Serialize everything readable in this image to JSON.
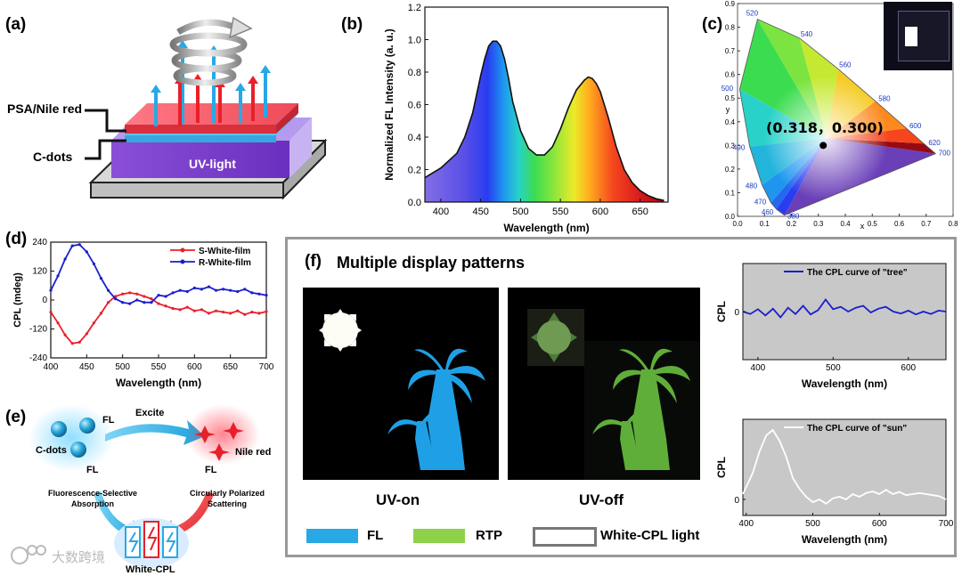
{
  "panels": {
    "a": {
      "label": "(a)",
      "layer_top": "PSA/Nile red",
      "layer_bottom": "C-dots",
      "device_text": "UV-light"
    },
    "b": {
      "label": "(b)"
    },
    "c": {
      "label": "(c)",
      "point_label": "(0.318，0.300)"
    },
    "d": {
      "label": "(d)"
    },
    "e": {
      "label": "(e)",
      "cdots": "C-dots",
      "fl1": "FL",
      "excite": "Excite",
      "nile": "Nile red",
      "fl2": "FL",
      "fl3": "FL",
      "left_caption_1": "Fluorescence-Selective",
      "left_caption_2": "Absorption",
      "right_caption_1": "Circularly Polarized",
      "right_caption_2": "Scattering",
      "bottom": "White-CPL",
      "watermark": "大数跨境"
    },
    "f": {
      "label": "(f)",
      "title": "Multiple display patterns",
      "uv_on": "UV-on",
      "uv_off": "UV-off",
      "legend_fl": "FL",
      "legend_rtp": "RTP",
      "legend_white": "White-CPL light"
    }
  },
  "colors": {
    "fl": "#29a8e6",
    "rtp": "#8fd24a",
    "s_film": "#e8202a",
    "r_film": "#1a1fcc"
  },
  "chart_data": [
    {
      "id": "b",
      "type": "area",
      "xlabel": "Wavelength (nm)",
      "ylabel": "Normalized FL Intensity (a. u.)",
      "xlim": [
        380,
        685
      ],
      "ylim": [
        0,
        1.2
      ],
      "xticks": [
        400,
        450,
        500,
        550,
        600,
        650
      ],
      "yticks": [
        0.0,
        0.2,
        0.4,
        0.6,
        0.8,
        1.0,
        1.2
      ],
      "x": [
        380,
        400,
        420,
        430,
        440,
        450,
        455,
        460,
        465,
        470,
        475,
        480,
        485,
        490,
        500,
        510,
        520,
        530,
        540,
        550,
        560,
        570,
        580,
        585,
        590,
        595,
        600,
        610,
        620,
        630,
        640,
        650,
        660,
        670,
        680
      ],
      "y": [
        0.15,
        0.21,
        0.3,
        0.4,
        0.55,
        0.78,
        0.88,
        0.96,
        0.99,
        0.99,
        0.96,
        0.88,
        0.76,
        0.62,
        0.44,
        0.33,
        0.29,
        0.29,
        0.34,
        0.45,
        0.58,
        0.69,
        0.75,
        0.77,
        0.76,
        0.73,
        0.68,
        0.52,
        0.34,
        0.2,
        0.12,
        0.07,
        0.04,
        0.02,
        0.01
      ]
    },
    {
      "id": "c",
      "type": "scatter",
      "xlabel": "x",
      "ylabel": "y",
      "xlim": [
        0,
        0.8
      ],
      "ylim": [
        0,
        0.9
      ],
      "xticks": [
        0.0,
        0.1,
        0.2,
        0.3,
        0.4,
        0.5,
        0.6,
        0.7,
        0.8
      ],
      "yticks": [
        0.0,
        0.1,
        0.2,
        0.3,
        0.4,
        0.5,
        0.6,
        0.7,
        0.8,
        0.9
      ],
      "locus_labels": [
        {
          "nm": "380",
          "x": 0.174,
          "y": 0.005
        },
        {
          "nm": "460",
          "x": 0.144,
          "y": 0.03
        },
        {
          "nm": "470",
          "x": 0.124,
          "y": 0.058
        },
        {
          "nm": "480",
          "x": 0.091,
          "y": 0.133
        },
        {
          "nm": "490",
          "x": 0.045,
          "y": 0.295
        },
        {
          "nm": "500",
          "x": 0.008,
          "y": 0.538
        },
        {
          "nm": "520",
          "x": 0.074,
          "y": 0.834
        },
        {
          "nm": "540",
          "x": 0.23,
          "y": 0.754
        },
        {
          "nm": "560",
          "x": 0.373,
          "y": 0.624
        },
        {
          "nm": "580",
          "x": 0.512,
          "y": 0.487
        },
        {
          "nm": "600",
          "x": 0.627,
          "y": 0.372
        },
        {
          "nm": "620",
          "x": 0.691,
          "y": 0.308
        },
        {
          "nm": "700",
          "x": 0.735,
          "y": 0.265
        }
      ],
      "point": {
        "x": 0.318,
        "y": 0.3
      }
    },
    {
      "id": "d",
      "type": "line",
      "xlabel": "Wavelength (nm)",
      "ylabel": "CPL (mdeg)",
      "xlim": [
        400,
        700
      ],
      "ylim": [
        -240,
        240
      ],
      "xticks": [
        400,
        450,
        500,
        550,
        600,
        650,
        700
      ],
      "yticks": [
        -240,
        -120,
        0,
        120,
        240
      ],
      "legend": "top-right",
      "x": [
        400,
        410,
        420,
        430,
        440,
        450,
        460,
        470,
        480,
        490,
        500,
        510,
        520,
        530,
        540,
        550,
        560,
        570,
        580,
        590,
        600,
        610,
        620,
        630,
        640,
        650,
        660,
        670,
        680,
        690,
        700
      ],
      "series": [
        {
          "name": "S-White-film",
          "color": "#e8202a",
          "values": [
            -50,
            -95,
            -145,
            -180,
            -175,
            -140,
            -95,
            -55,
            -10,
            15,
            25,
            30,
            25,
            15,
            5,
            -15,
            -25,
            -35,
            -40,
            -30,
            -45,
            -40,
            -55,
            -45,
            -50,
            -55,
            -45,
            -60,
            -50,
            -55,
            -48
          ]
        },
        {
          "name": "R-White-film",
          "color": "#1a1fcc",
          "values": [
            40,
            100,
            170,
            225,
            230,
            200,
            150,
            90,
            40,
            5,
            -10,
            -15,
            0,
            -10,
            -10,
            20,
            15,
            30,
            40,
            35,
            50,
            45,
            55,
            40,
            45,
            40,
            35,
            45,
            30,
            25,
            20
          ]
        }
      ]
    },
    {
      "id": "f-tree",
      "type": "line",
      "xlabel": "Wavelength (nm)",
      "ylabel": "CPL",
      "xlim": [
        380,
        650
      ],
      "ylim": [
        -1,
        1
      ],
      "xticks": [
        400,
        500,
        600
      ],
      "yticks": [
        0
      ],
      "series": [
        {
          "name": "The CPL curve of \"tree\"",
          "color": "#1a1fcc",
          "x": [
            380,
            390,
            400,
            410,
            420,
            430,
            440,
            450,
            460,
            470,
            480,
            490,
            500,
            510,
            520,
            530,
            540,
            550,
            560,
            570,
            580,
            590,
            600,
            610,
            620,
            630,
            640,
            650
          ],
          "values": [
            0.0,
            -0.05,
            0.05,
            -0.08,
            0.06,
            -0.12,
            0.08,
            -0.05,
            0.12,
            -0.06,
            0.03,
            0.25,
            0.05,
            0.1,
            0.0,
            0.08,
            0.12,
            -0.02,
            0.06,
            0.1,
            0.0,
            -0.04,
            0.02,
            -0.06,
            0.0,
            -0.05,
            0.02,
            0.0
          ]
        }
      ]
    },
    {
      "id": "f-sun",
      "type": "line",
      "xlabel": "Wavelength (nm)",
      "ylabel": "CPL",
      "xlim": [
        395,
        700
      ],
      "ylim": [
        -0.3,
        1.5
      ],
      "xticks": [
        400,
        500,
        600,
        700
      ],
      "yticks": [
        0
      ],
      "series": [
        {
          "name": "The CPL curve of \"sun\"",
          "color": "#ffffff",
          "x": [
            395,
            410,
            420,
            430,
            440,
            450,
            460,
            470,
            480,
            490,
            500,
            510,
            520,
            530,
            540,
            550,
            560,
            570,
            580,
            590,
            600,
            610,
            620,
            630,
            640,
            650,
            660,
            670,
            680,
            690,
            700
          ],
          "values": [
            0.1,
            0.5,
            0.9,
            1.2,
            1.3,
            1.1,
            0.8,
            0.4,
            0.2,
            0.05,
            -0.05,
            0.0,
            -0.08,
            0.02,
            0.05,
            0.0,
            0.1,
            0.05,
            0.12,
            0.15,
            0.1,
            0.18,
            0.1,
            0.14,
            0.08,
            0.1,
            0.12,
            0.1,
            0.08,
            0.06,
            0.0
          ]
        }
      ]
    }
  ]
}
